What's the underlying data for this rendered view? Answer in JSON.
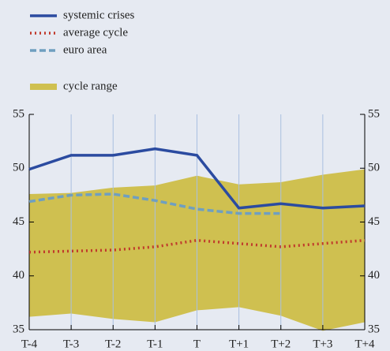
{
  "chart_data": {
    "type": "line",
    "categories": [
      "T-4",
      "T-3",
      "T-2",
      "T-1",
      "T",
      "T+1",
      "T+2",
      "T+3",
      "T+4"
    ],
    "series": [
      {
        "name": "systemic crises",
        "color": "#2b4ba0",
        "style": "solid",
        "values": [
          49.9,
          51.2,
          51.2,
          51.8,
          51.2,
          46.3,
          46.7,
          46.3,
          46.5
        ]
      },
      {
        "name": "average cycle",
        "color": "#c0392b",
        "style": "dotted",
        "values": [
          42.2,
          42.3,
          42.4,
          42.7,
          43.3,
          43.0,
          42.7,
          43.0,
          43.3
        ]
      },
      {
        "name": "euro area",
        "color": "#6f9fc0",
        "style": "dashed",
        "values": [
          46.9,
          47.5,
          47.6,
          47.0,
          46.2,
          45.8,
          45.8,
          null,
          null
        ]
      }
    ],
    "range": {
      "name": "cycle range",
      "color": "#cfc050",
      "upper": [
        47.6,
        47.7,
        48.2,
        48.4,
        49.3,
        48.5,
        48.7,
        49.4,
        49.9
      ],
      "lower": [
        36.2,
        36.5,
        36.0,
        35.7,
        36.8,
        37.1,
        36.3,
        34.9,
        35.7
      ]
    },
    "ylim": [
      35,
      55
    ],
    "yticks": [
      35,
      40,
      45,
      50,
      55
    ],
    "grid": true
  }
}
